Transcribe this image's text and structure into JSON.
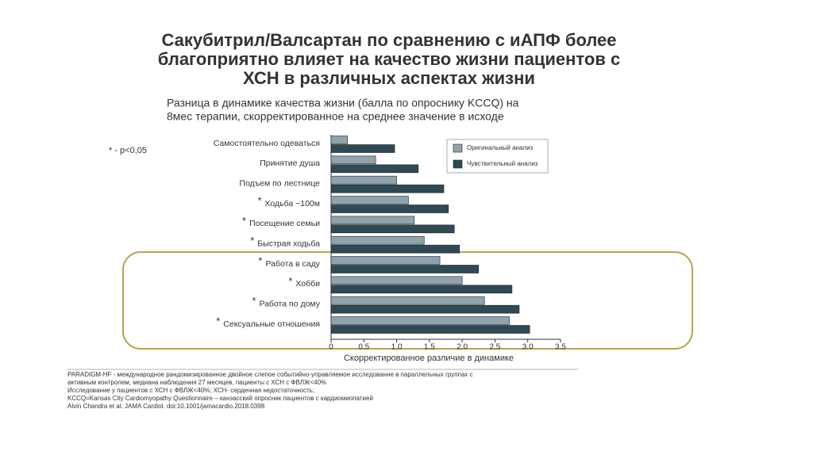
{
  "chart_data": {
    "type": "bar",
    "orientation": "horizontal",
    "title": [
      "Сакубитрил/Валсартан по сравнению с иАПФ более",
      "благоприятно влияет на качество жизни пациентов с",
      "ХСН в различных аспектах жизни"
    ],
    "subtitle": [
      "Разница в динамике качества жизни (балла по опроснику KCCQ) на",
      "8мес терапии, скорректированное на среднее значение в исходе"
    ],
    "significance_note": "* - p<0,05",
    "significance_marker": "*",
    "categories": [
      "Самостоятельно одеваться",
      "Принятие душа",
      "Подъем по лестнице",
      "Ходьба ~100м",
      "Посещение семьи",
      "Быстрая ходьба",
      "Работа в саду",
      "Хобби",
      "Работа по дому",
      "Сексуальные отношения"
    ],
    "significant": [
      false,
      false,
      false,
      true,
      true,
      true,
      true,
      true,
      true,
      true
    ],
    "series": [
      {
        "name": "Оригинальный анализ",
        "color": "#8fa3ae",
        "values": [
          0.25,
          0.68,
          1.0,
          1.18,
          1.27,
          1.42,
          1.66,
          2.0,
          2.34,
          2.72
        ]
      },
      {
        "name": "Чувствительный анализ",
        "color": "#2f4a55",
        "values": [
          0.97,
          1.33,
          1.72,
          1.79,
          1.88,
          1.96,
          2.25,
          2.76,
          2.87,
          3.03
        ]
      }
    ],
    "xlim": [
      0,
      3.5
    ],
    "xticks": [
      0,
      0.5,
      {
        "value": 1,
        "label": "1.0"
      },
      1.5,
      {
        "value": 2,
        "label": "2.0"
      },
      2.5,
      {
        "value": 3,
        "label": "3.0"
      },
      3.5
    ],
    "xlabel": "Скорректированное различие в динамике",
    "footnotes": [
      "PARADIGM-HF - международное рандомизированное двойное слепое событийно-управляемое исследование в параллельных группах с",
      "активным контролем, медиана наблюдения 27 месяцев,  пациенты с ХСН с ФВЛЖ<40%",
      "Исследование у пациентов с ХСН с ФВЛЖ<40%; ХСН- сердечная недостаточность;",
      "KCCQ=Kansas City Cardiomyopathy Questionnaire – канзасский опросник пациентов с кардиомиопатией",
      "Alvin Chandra et al. JAMA Cardiol. doi:10.1001/jamacardio.2018.0398"
    ]
  }
}
